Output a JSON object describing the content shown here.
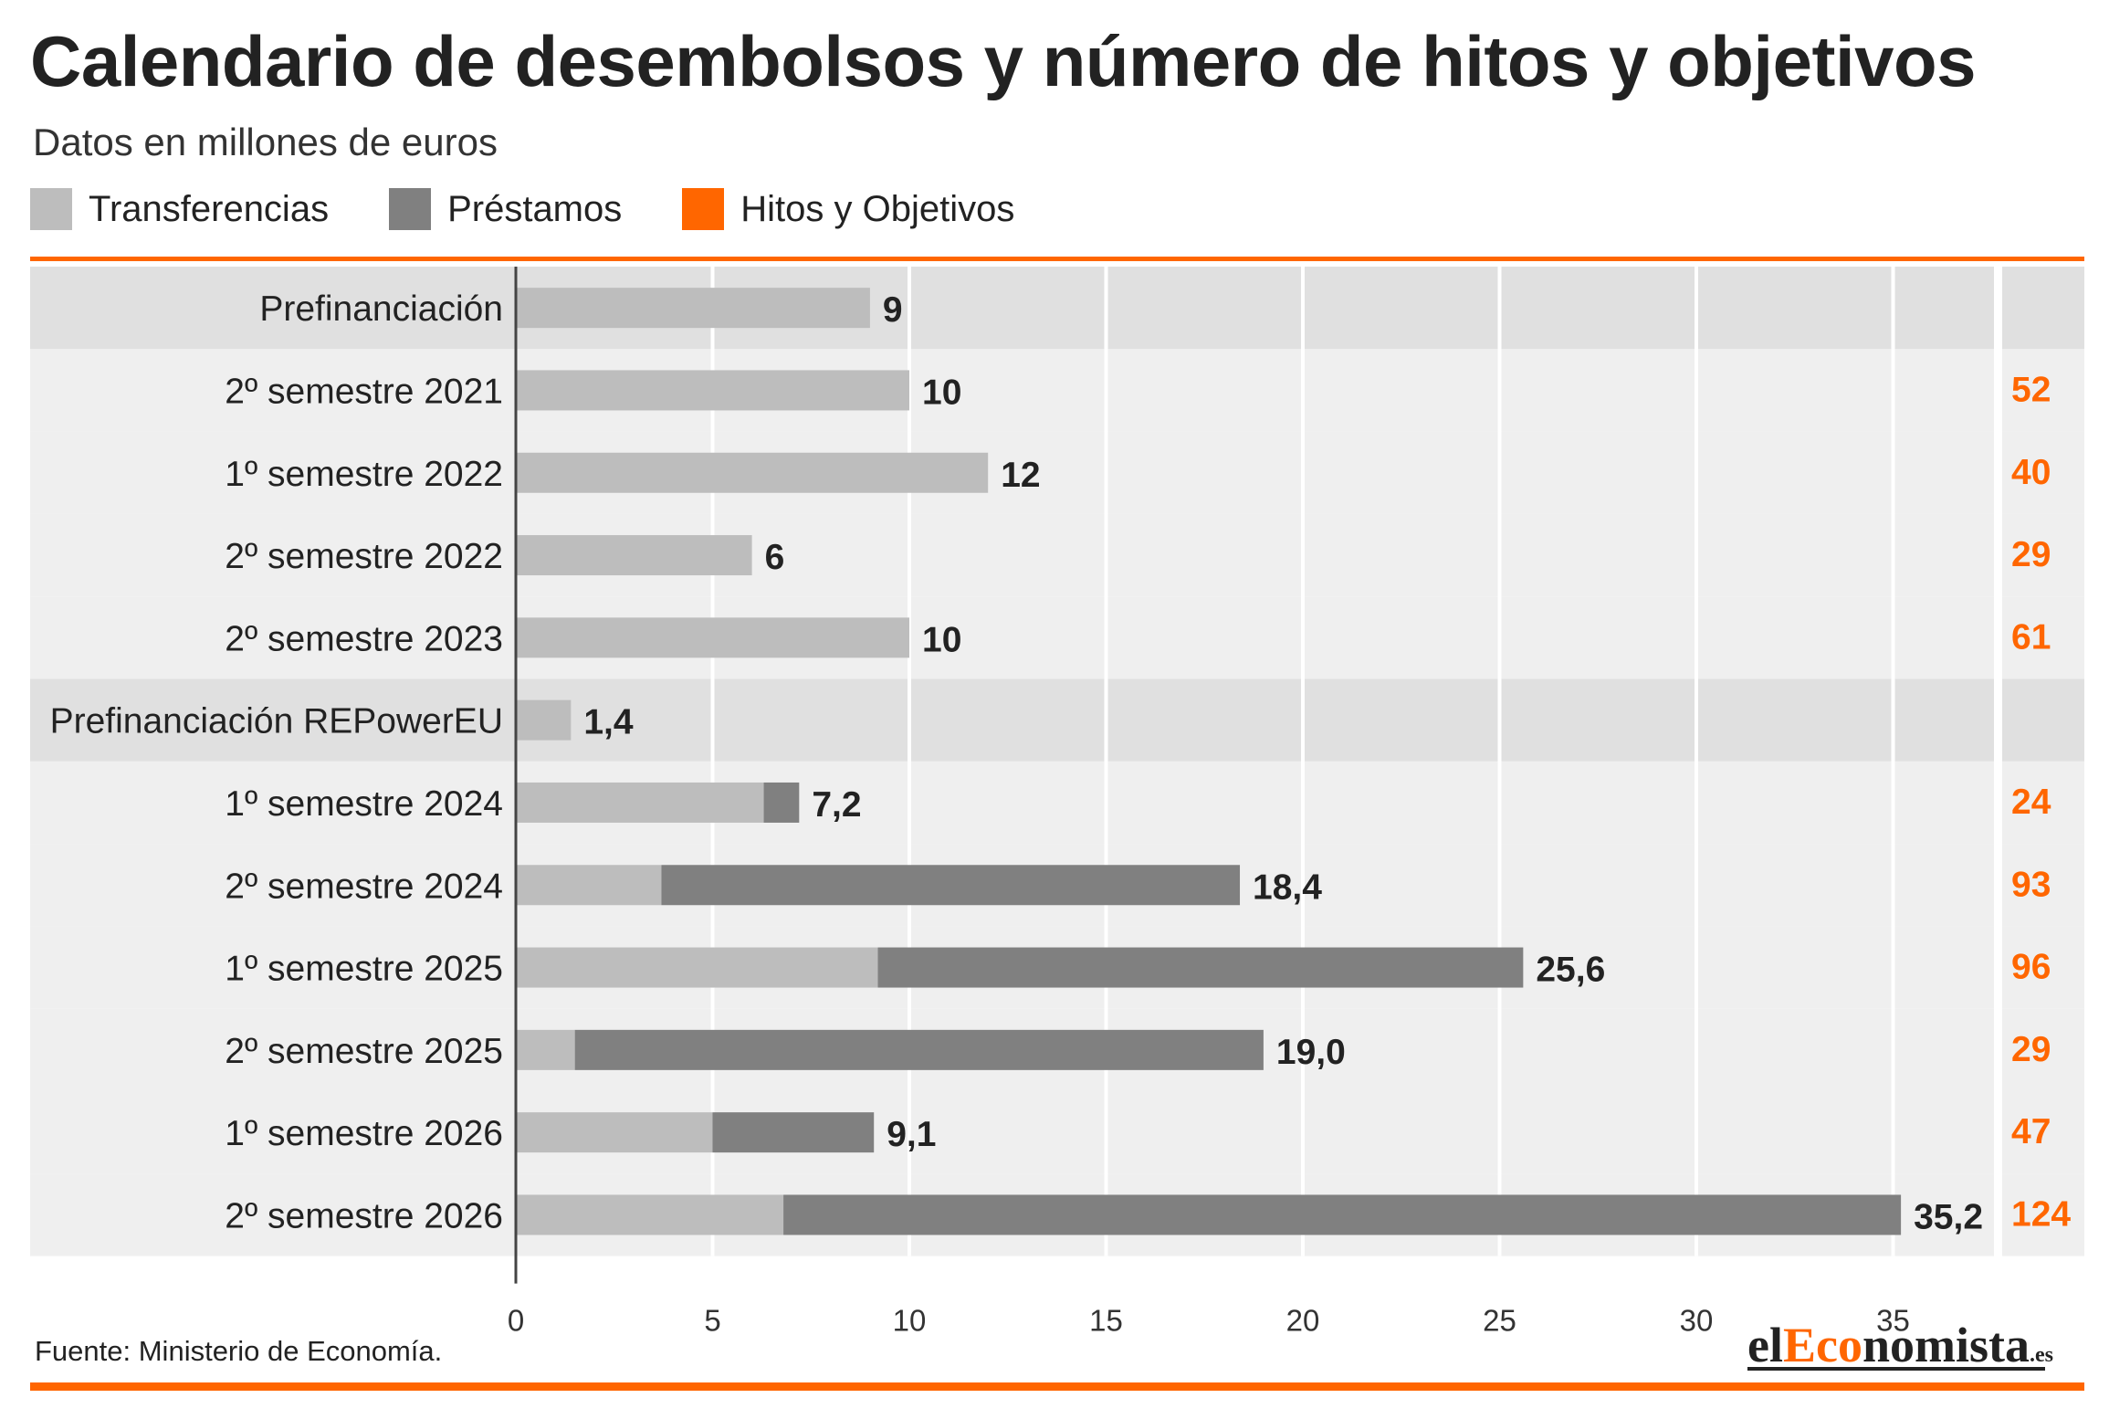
{
  "title": "Calendario de desembolsos y número de hitos y objetivos",
  "subtitle": "Datos en millones de euros",
  "legend": [
    {
      "label": "Transferencias",
      "color": "#bdbdbd"
    },
    {
      "label": "Préstamos",
      "color": "#808080"
    },
    {
      "label": "Hitos y Objetivos",
      "color": "#ff6600"
    }
  ],
  "colors": {
    "accent": "#ff6600",
    "transferencias": "#bdbdbd",
    "prestamos": "#808080",
    "row_dark": "#e0e0e0",
    "row_light": "#efefef",
    "grid": "#ffffff",
    "axis": "#444444"
  },
  "chart_data": {
    "type": "bar",
    "orientation": "horizontal",
    "stacked": true,
    "categories": [
      "Prefinanciación",
      "2º semestre 2021",
      "1º semestre 2022",
      "2º semestre 2022",
      "2º semestre 2023",
      "Prefinanciación REPowerEU",
      "1º semestre 2024",
      "2º semestre 2024",
      "1º semestre 2025",
      "2º semestre 2025",
      "1º semestre 2026",
      "2º semestre 2026"
    ],
    "series": [
      {
        "name": "Transferencias",
        "values": [
          9,
          10,
          12,
          6,
          10,
          1.4,
          6.3,
          3.7,
          9.2,
          1.5,
          5.0,
          6.8
        ]
      },
      {
        "name": "Préstamos",
        "values": [
          0,
          0,
          0,
          0,
          0,
          0,
          0.9,
          14.7,
          16.4,
          17.5,
          4.1,
          28.4
        ]
      }
    ],
    "totals": [
      "9",
      "10",
      "12",
      "6",
      "10",
      "1,4",
      "7,2",
      "18,4",
      "25,6",
      "19,0",
      "9,1",
      "35,2"
    ],
    "hitos_y_objetivos": [
      "",
      "52",
      "40",
      "29",
      "61",
      "",
      "24",
      "93",
      "96",
      "29",
      "47",
      "124"
    ],
    "highlighted_rows": [
      0,
      5
    ],
    "xlim": [
      0,
      37
    ],
    "xticks": [
      0,
      5,
      10,
      15,
      20,
      25,
      30,
      35
    ],
    "xlabel": "",
    "ylabel": "",
    "grid": true,
    "legend_position": "top-left"
  },
  "source": "Fuente: Ministerio de Economía.",
  "brand": {
    "prefix": "el",
    "accent": "Eco",
    "rest": "nomista",
    "tld": ".es"
  }
}
